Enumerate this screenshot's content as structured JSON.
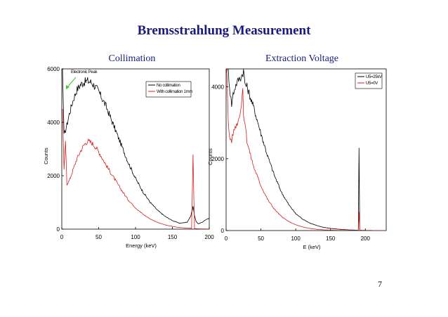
{
  "slide": {
    "title": "Bremsstrahlung Measurement",
    "page_number": "7"
  },
  "colors": {
    "title": "#1a1a7a",
    "series_black": "#000000",
    "series_red": "#d42020",
    "annotation_arrow": "#33cc33"
  },
  "chart_data": [
    {
      "type": "line",
      "title": "Collimation",
      "xlabel": "Energy (keV)",
      "ylabel": "Counts",
      "xlim": [
        0,
        200
      ],
      "ylim": [
        0,
        6000
      ],
      "xticks": [
        0,
        50,
        100,
        150,
        200
      ],
      "yticks": [
        0,
        2000,
        4000,
        6000
      ],
      "legend_position": "top-right",
      "annotation": "Electronic Peak",
      "series": [
        {
          "name": "No collimation",
          "color": "#000000",
          "x": [
            1,
            3,
            5,
            7,
            10,
            15,
            20,
            25,
            30,
            35,
            40,
            45,
            50,
            60,
            70,
            80,
            90,
            100,
            110,
            120,
            130,
            140,
            150,
            160,
            170,
            175,
            178,
            180,
            182,
            185,
            190,
            195,
            200
          ],
          "y": [
            6000,
            3500,
            3700,
            3900,
            4300,
            4800,
            5200,
            5400,
            5500,
            5550,
            5500,
            5350,
            5150,
            4600,
            3900,
            3200,
            2500,
            1900,
            1400,
            1000,
            700,
            480,
            320,
            220,
            260,
            500,
            850,
            500,
            300,
            200,
            250,
            350,
            400
          ]
        },
        {
          "name": "With collimation 1mm",
          "color": "#d42020",
          "x": [
            1,
            3,
            5,
            7,
            10,
            15,
            20,
            25,
            30,
            35,
            40,
            45,
            50,
            60,
            70,
            80,
            90,
            100,
            110,
            120,
            130,
            140,
            150,
            160,
            170,
            176,
            178,
            179,
            180,
            183,
            190,
            200
          ],
          "y": [
            4500,
            2200,
            3300,
            1700,
            1800,
            2200,
            2600,
            2900,
            3150,
            3300,
            3250,
            3100,
            2900,
            2400,
            1950,
            1500,
            1100,
            800,
            560,
            380,
            250,
            160,
            100,
            60,
            40,
            30,
            2800,
            1200,
            20,
            15,
            10,
            5
          ]
        }
      ]
    },
    {
      "type": "line",
      "title": "Extraction Voltage",
      "xlabel": "E (keV)",
      "ylabel": "Counts",
      "xlim": [
        0,
        230
      ],
      "ylim": [
        0,
        4500
      ],
      "xticks": [
        0,
        50,
        100,
        150,
        200
      ],
      "yticks": [
        0,
        2000,
        4000
      ],
      "legend_position": "top-right",
      "series": [
        {
          "name": "U5=25kV",
          "color": "#000000",
          "x": [
            1,
            3,
            5,
            8,
            10,
            13,
            15,
            18,
            20,
            22,
            25,
            27,
            30,
            35,
            40,
            50,
            60,
            70,
            80,
            90,
            100,
            110,
            120,
            130,
            140,
            150,
            160,
            170,
            180,
            190,
            191,
            192,
            195,
            200,
            210,
            220,
            230
          ],
          "y": [
            4500,
            4500,
            4000,
            3500,
            3800,
            4000,
            4100,
            4200,
            4250,
            4300,
            4450,
            4100,
            4000,
            3700,
            3400,
            2700,
            2050,
            1500,
            1050,
            720,
            470,
            320,
            210,
            140,
            90,
            60,
            40,
            25,
            15,
            10,
            2300,
            10,
            8,
            5,
            3,
            2,
            1
          ]
        },
        {
          "name": "U5=0V",
          "color": "#d42020",
          "x": [
            1,
            3,
            5,
            8,
            10,
            13,
            15,
            18,
            20,
            22,
            24,
            25,
            27,
            30,
            35,
            40,
            50,
            60,
            70,
            80,
            90,
            100,
            110,
            120,
            130,
            140,
            150,
            160,
            170,
            180,
            190,
            191,
            192,
            200,
            230
          ],
          "y": [
            4500,
            3000,
            2600,
            2500,
            2700,
            2900,
            2950,
            3100,
            3300,
            3500,
            4000,
            3100,
            3050,
            2500,
            2100,
            1750,
            1250,
            850,
            580,
            380,
            250,
            160,
            100,
            60,
            35,
            20,
            12,
            8,
            5,
            3,
            2,
            500,
            2,
            1,
            0
          ]
        }
      ]
    }
  ]
}
